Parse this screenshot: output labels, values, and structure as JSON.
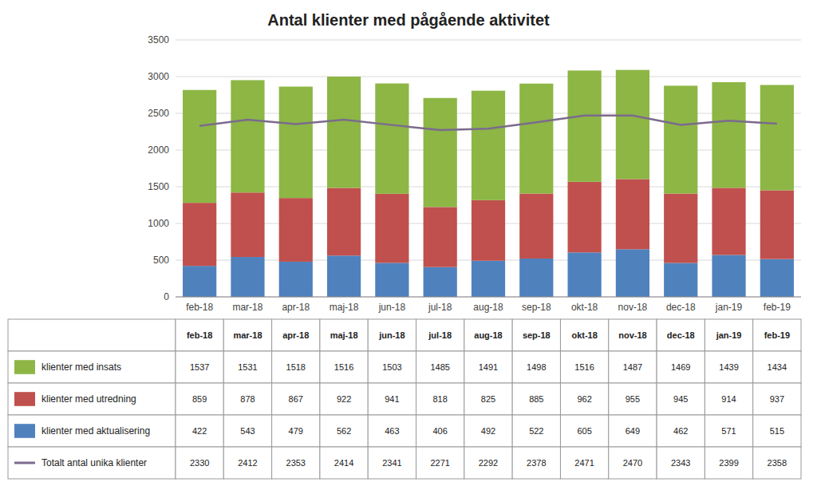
{
  "chart_data": {
    "type": "bar",
    "title": "Antal klienter med pågående aktivitet",
    "categories": [
      "feb-18",
      "mar-18",
      "apr-18",
      "maj-18",
      "jun-18",
      "jul-18",
      "aug-18",
      "sep-18",
      "okt-18",
      "nov-18",
      "dec-18",
      "jan-19",
      "feb-19"
    ],
    "series": [
      {
        "name": "klienter med insats",
        "type": "bar",
        "color": "#8db645",
        "values": [
          1537,
          1531,
          1518,
          1516,
          1503,
          1485,
          1491,
          1498,
          1516,
          1487,
          1469,
          1439,
          1434
        ]
      },
      {
        "name": "klienter med utredning",
        "type": "bar",
        "color": "#c0504d",
        "values": [
          859,
          878,
          867,
          922,
          941,
          818,
          825,
          885,
          962,
          955,
          945,
          914,
          937
        ]
      },
      {
        "name": "klienter med aktualisering",
        "type": "bar",
        "color": "#4f81bd",
        "values": [
          422,
          543,
          479,
          562,
          463,
          406,
          492,
          522,
          605,
          649,
          462,
          571,
          515
        ]
      },
      {
        "name": "Totalt antal unika klienter",
        "type": "line",
        "color": "#7b6b8d",
        "values": [
          2330,
          2412,
          2353,
          2414,
          2341,
          2271,
          2292,
          2378,
          2471,
          2470,
          2343,
          2399,
          2358
        ]
      }
    ],
    "stacked": true,
    "ylim": [
      0,
      3500
    ],
    "yticks": [
      0,
      500,
      1000,
      1500,
      2000,
      2500,
      3000,
      3500
    ],
    "grid": true
  }
}
